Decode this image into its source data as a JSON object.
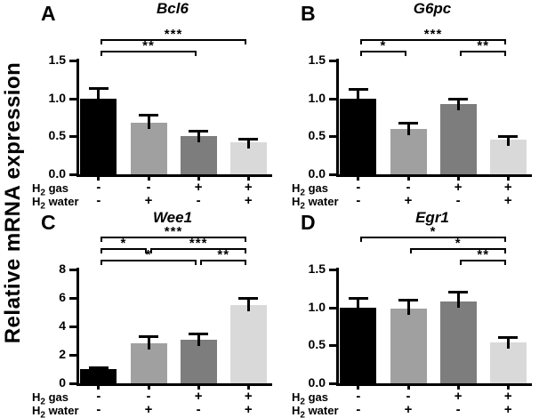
{
  "figure": {
    "y_axis_label": "Relative mRNA expression",
    "axis_color": "#000000",
    "bar_colors": [
      "#000000",
      "#a0a0a0",
      "#7d7d7d",
      "#d9d9d9"
    ],
    "x_condition_rows": [
      {
        "label_pre": "H",
        "label_sub": "2",
        "label_post": " gas",
        "signs": [
          "-",
          "-",
          "+",
          "+"
        ]
      },
      {
        "label_pre": "H",
        "label_sub": "2",
        "label_post": " water",
        "signs": [
          "-",
          "+",
          "-",
          "+"
        ]
      }
    ]
  },
  "chart_data": [
    {
      "type": "bar",
      "panel_letter": "A",
      "title": "Bcl6",
      "categories": [
        "H2 gas -, H2 water -",
        "H2 gas -, H2 water +",
        "H2 gas +, H2 water -",
        "H2 gas +, H2 water +"
      ],
      "values": [
        1.0,
        0.68,
        0.5,
        0.42
      ],
      "errors": [
        0.14,
        0.1,
        0.08,
        0.05
      ],
      "ylim": [
        0,
        1.5
      ],
      "yticks": [
        "0.0",
        "0.5",
        "1.0",
        "1.5"
      ],
      "grid": false,
      "significance": [
        {
          "from": 0,
          "to": 3,
          "label": "***",
          "level": 0
        },
        {
          "from": 0,
          "to": 2,
          "label": "**",
          "level": 1
        }
      ]
    },
    {
      "type": "bar",
      "panel_letter": "B",
      "title": "G6pc",
      "categories": [
        "H2 gas -, H2 water -",
        "H2 gas -, H2 water +",
        "H2 gas +, H2 water -",
        "H2 gas +, H2 water +"
      ],
      "values": [
        1.0,
        0.6,
        0.92,
        0.46
      ],
      "errors": [
        0.12,
        0.08,
        0.08,
        0.04
      ],
      "ylim": [
        0,
        1.5
      ],
      "yticks": [
        "0.0",
        "0.5",
        "1.0",
        "1.5"
      ],
      "grid": false,
      "significance": [
        {
          "from": 0,
          "to": 3,
          "label": "***",
          "level": 0
        },
        {
          "from": 0,
          "to": 1,
          "label": "*",
          "level": 1
        },
        {
          "from": 2,
          "to": 3,
          "label": "**",
          "level": 1
        }
      ]
    },
    {
      "type": "bar",
      "panel_letter": "C",
      "title": "Wee1",
      "categories": [
        "H2 gas -, H2 water -",
        "H2 gas -, H2 water +",
        "H2 gas +, H2 water -",
        "H2 gas +, H2 water +"
      ],
      "values": [
        1.0,
        2.8,
        3.05,
        5.5
      ],
      "errors": [
        0.15,
        0.5,
        0.45,
        0.5
      ],
      "ylim": [
        0,
        8
      ],
      "yticks": [
        "0",
        "2",
        "4",
        "6",
        "8"
      ],
      "grid": false,
      "significance": [
        {
          "from": 0,
          "to": 3,
          "label": "***",
          "level": 0
        },
        {
          "from": 0,
          "to": 1,
          "label": "*",
          "level": 1
        },
        {
          "from": 1,
          "to": 3,
          "label": "***",
          "level": 1
        },
        {
          "from": 0,
          "to": 2,
          "label": "*",
          "level": 2
        },
        {
          "from": 2,
          "to": 3,
          "label": "**",
          "level": 2
        }
      ]
    },
    {
      "type": "bar",
      "panel_letter": "D",
      "title": "Egr1",
      "categories": [
        "H2 gas -, H2 water -",
        "H2 gas -, H2 water +",
        "H2 gas +, H2 water -",
        "H2 gas +, H2 water +"
      ],
      "values": [
        1.0,
        0.99,
        1.08,
        0.54
      ],
      "errors": [
        0.13,
        0.11,
        0.13,
        0.07
      ],
      "ylim": [
        0,
        1.5
      ],
      "yticks": [
        "0.0",
        "0.5",
        "1.0",
        "1.5"
      ],
      "grid": false,
      "significance": [
        {
          "from": 0,
          "to": 3,
          "label": "*",
          "level": 0
        },
        {
          "from": 1,
          "to": 3,
          "label": "*",
          "level": 1
        },
        {
          "from": 2,
          "to": 3,
          "label": "**",
          "level": 2
        }
      ]
    }
  ]
}
